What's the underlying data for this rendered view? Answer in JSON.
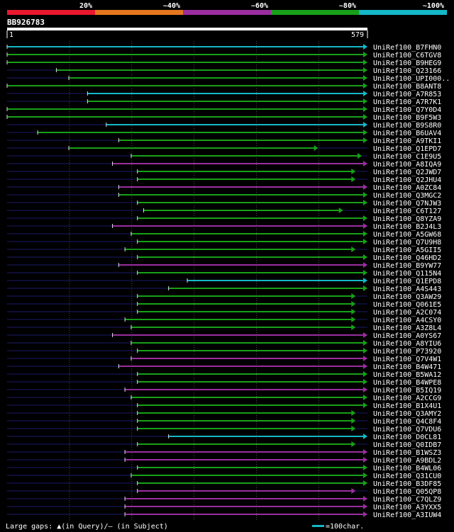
{
  "legend": {
    "bins": [
      {
        "label": "20%",
        "color": "#e8182e"
      },
      {
        "label": "~40%",
        "color": "#e5781e"
      },
      {
        "label": "~60%",
        "color": "#9a2ea0"
      },
      {
        "label": "~80%",
        "color": "#18a018"
      },
      {
        "label": "~100%",
        "color": "#14b8c8"
      }
    ]
  },
  "query": {
    "id": "BB926783",
    "start_label": "1",
    "end_label": "579",
    "length": 579
  },
  "footer": {
    "gaps_label": "Large gaps: ▲(in Query)/– (in Subject)",
    "scale_label": "=100char."
  },
  "chart_data": {
    "type": "alignment-map",
    "query_length": 579,
    "hits": [
      {
        "name": "UniRef100_B7FHN0",
        "start": 1,
        "end": 579,
        "bin": 4
      },
      {
        "name": "UniRef100_C6TGV8",
        "start": 1,
        "end": 579,
        "bin": 3
      },
      {
        "name": "UniRef100_B9HEG9",
        "start": 1,
        "end": 579,
        "bin": 3
      },
      {
        "name": "UniRef100_Q23166",
        "start": 80,
        "end": 579,
        "bin": 3
      },
      {
        "name": "UniRef100_UPI000..",
        "start": 100,
        "end": 579,
        "bin": 3
      },
      {
        "name": "UniRef100_B8ANT8",
        "start": 1,
        "end": 579,
        "bin": 3
      },
      {
        "name": "UniRef100_A7R853",
        "start": 130,
        "end": 579,
        "bin": 4
      },
      {
        "name": "UniRef100_A7R7K1",
        "start": 130,
        "end": 579,
        "bin": 3
      },
      {
        "name": "UniRef100_Q7Y0D4",
        "start": 1,
        "end": 579,
        "bin": 3
      },
      {
        "name": "UniRef100_B9F5W3",
        "start": 1,
        "end": 579,
        "bin": 3
      },
      {
        "name": "UniRef100_B9S8R0",
        "start": 160,
        "end": 579,
        "bin": 4
      },
      {
        "name": "UniRef100_B6UAV4",
        "start": 50,
        "end": 579,
        "bin": 3
      },
      {
        "name": "UniRef100_A9TKI1",
        "start": 180,
        "end": 579,
        "bin": 3
      },
      {
        "name": "UniRef100_Q1EPD7",
        "start": 100,
        "end": 500,
        "bin": 3
      },
      {
        "name": "UniRef100_C1E9U5",
        "start": 200,
        "end": 570,
        "bin": 3
      },
      {
        "name": "UniRef100_A8IQA9",
        "start": 170,
        "end": 579,
        "bin": 2
      },
      {
        "name": "UniRef100_Q2JWD7",
        "start": 210,
        "end": 560,
        "bin": 3
      },
      {
        "name": "UniRef100_Q2JHU4",
        "start": 210,
        "end": 560,
        "bin": 3
      },
      {
        "name": "UniRef100_A0ZC84",
        "start": 180,
        "end": 579,
        "bin": 2
      },
      {
        "name": "UniRef100_Q3MGC2",
        "start": 180,
        "end": 579,
        "bin": 3
      },
      {
        "name": "UniRef100_Q7NJW3",
        "start": 210,
        "end": 579,
        "bin": 3
      },
      {
        "name": "UniRef100_C6T127",
        "start": 220,
        "end": 540,
        "bin": 3
      },
      {
        "name": "UniRef100_Q8YZA9",
        "start": 210,
        "end": 579,
        "bin": 3
      },
      {
        "name": "UniRef100_B2J4L3",
        "start": 170,
        "end": 579,
        "bin": 2
      },
      {
        "name": "UniRef100_A5GW68",
        "start": 200,
        "end": 579,
        "bin": 3
      },
      {
        "name": "UniRef100_Q7U9H8",
        "start": 210,
        "end": 579,
        "bin": 3
      },
      {
        "name": "UniRef100_A5GII5",
        "start": 190,
        "end": 560,
        "bin": 3
      },
      {
        "name": "UniRef100_Q46HD2",
        "start": 210,
        "end": 579,
        "bin": 3
      },
      {
        "name": "UniRef100_B9YW77",
        "start": 180,
        "end": 579,
        "bin": 2
      },
      {
        "name": "UniRef100_Q115N4",
        "start": 210,
        "end": 579,
        "bin": 3
      },
      {
        "name": "UniRef100_Q1EPD8",
        "start": 290,
        "end": 579,
        "bin": 4
      },
      {
        "name": "UniRef100_A4S443",
        "start": 260,
        "end": 579,
        "bin": 3
      },
      {
        "name": "UniRef100_Q3AW29",
        "start": 210,
        "end": 560,
        "bin": 3
      },
      {
        "name": "UniRef100_Q061E5",
        "start": 210,
        "end": 560,
        "bin": 3
      },
      {
        "name": "UniRef100_A2C074",
        "start": 210,
        "end": 560,
        "bin": 3
      },
      {
        "name": "UniRef100_A4CSY0",
        "start": 190,
        "end": 560,
        "bin": 3
      },
      {
        "name": "UniRef100_A3Z8L4",
        "start": 200,
        "end": 560,
        "bin": 3
      },
      {
        "name": "UniRef100_A0YS67",
        "start": 170,
        "end": 579,
        "bin": 2
      },
      {
        "name": "UniRef100_A8YIU6",
        "start": 200,
        "end": 579,
        "bin": 3
      },
      {
        "name": "UniRef100_P73920",
        "start": 210,
        "end": 579,
        "bin": 3
      },
      {
        "name": "UniRef100_Q7V4W1",
        "start": 200,
        "end": 579,
        "bin": 2
      },
      {
        "name": "UniRef100_B4W471",
        "start": 180,
        "end": 579,
        "bin": 2
      },
      {
        "name": "UniRef100_B5WA12",
        "start": 210,
        "end": 579,
        "bin": 3
      },
      {
        "name": "UniRef100_B4WPE8",
        "start": 210,
        "end": 579,
        "bin": 3
      },
      {
        "name": "UniRef100_B5IQ19",
        "start": 190,
        "end": 579,
        "bin": 2
      },
      {
        "name": "UniRef100_A2CCG9",
        "start": 200,
        "end": 579,
        "bin": 3
      },
      {
        "name": "UniRef100_B1X4U1",
        "start": 210,
        "end": 579,
        "bin": 3
      },
      {
        "name": "UniRef100_Q3AMY2",
        "start": 210,
        "end": 560,
        "bin": 3
      },
      {
        "name": "UniRef100_Q4C8F4",
        "start": 210,
        "end": 560,
        "bin": 3
      },
      {
        "name": "UniRef100_Q7VDU6",
        "start": 210,
        "end": 560,
        "bin": 3
      },
      {
        "name": "UniRef100_D0CL81",
        "start": 260,
        "end": 579,
        "bin": 4
      },
      {
        "name": "UniRef100_Q0IDB7",
        "start": 210,
        "end": 560,
        "bin": 3
      },
      {
        "name": "UniRef100_B1WSZ3",
        "start": 190,
        "end": 579,
        "bin": 2
      },
      {
        "name": "UniRef100_A9BDL2",
        "start": 190,
        "end": 579,
        "bin": 2
      },
      {
        "name": "UniRef100_B4WL06",
        "start": 210,
        "end": 579,
        "bin": 3
      },
      {
        "name": "UniRef100_Q31CU0",
        "start": 200,
        "end": 579,
        "bin": 3
      },
      {
        "name": "UniRef100_B3DF85",
        "start": 210,
        "end": 579,
        "bin": 3
      },
      {
        "name": "UniRef100_Q05QP8",
        "start": 210,
        "end": 560,
        "bin": 2
      },
      {
        "name": "UniRef100_C7QLZ9",
        "start": 190,
        "end": 579,
        "bin": 2
      },
      {
        "name": "UniRef100_A3YXX5",
        "start": 190,
        "end": 579,
        "bin": 2
      },
      {
        "name": "UniRef100_A3IUW4",
        "start": 190,
        "end": 579,
        "bin": 2
      }
    ]
  }
}
